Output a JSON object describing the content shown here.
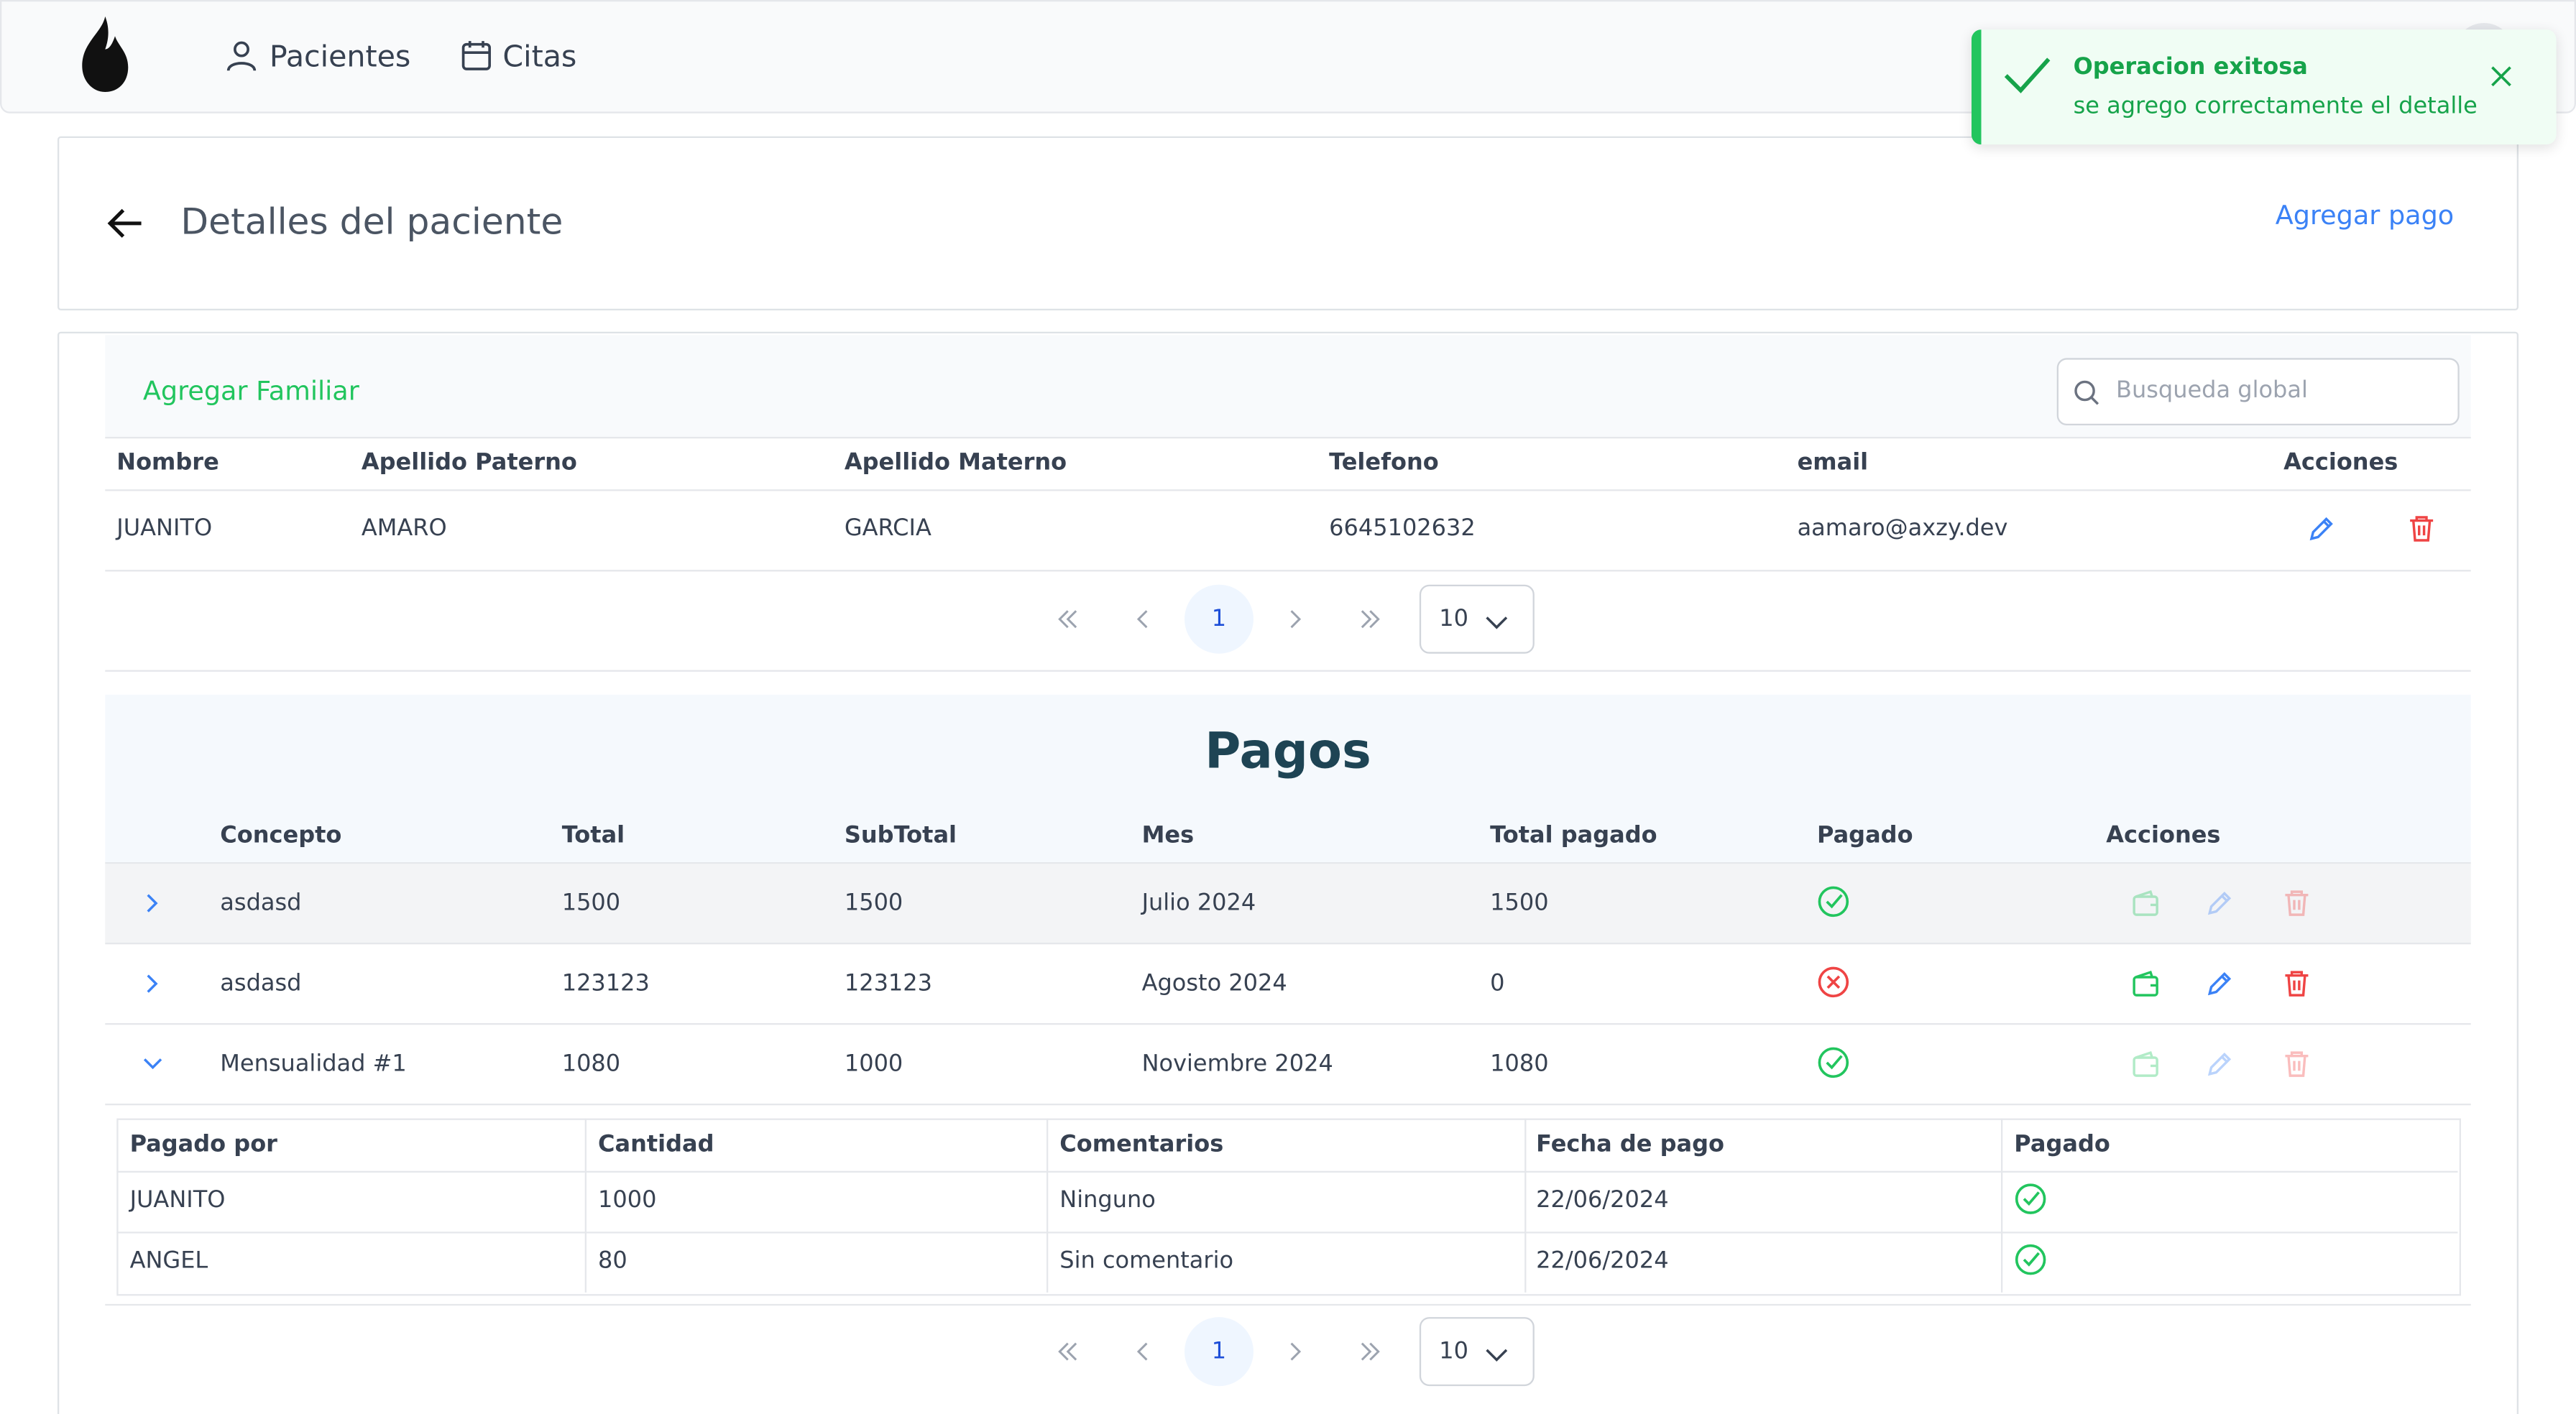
{
  "nav": {
    "items": [
      "Pacientes",
      "Citas"
    ]
  },
  "toast": {
    "title": "Operacion exitosa",
    "message": "se agrego correctamente el detalle"
  },
  "header": {
    "title": "Detalles del paciente",
    "action": "Agregar pago"
  },
  "family": {
    "add": "Agregar Familiar",
    "search_placeholder": "Busqueda global",
    "columns": [
      "Nombre",
      "Apellido Paterno",
      "Apellido Materno",
      "Telefono",
      "email",
      "Acciones"
    ],
    "rows": [
      [
        "JUANITO",
        "AMARO",
        "GARCIA",
        "6645102632",
        "aamaro@axzy.dev"
      ]
    ],
    "page": "1",
    "page_size": "10"
  },
  "payments": {
    "title": "Pagos",
    "columns": [
      "Concepto",
      "Total",
      "SubTotal",
      "Mes",
      "Total pagado",
      "Pagado",
      "Acciones"
    ],
    "rows": [
      {
        "cells": [
          "asdasd",
          "1500",
          "1500",
          "Julio 2024",
          "1500"
        ],
        "paid": true,
        "actions_enabled": false,
        "expanded": false,
        "highlighted": true
      },
      {
        "cells": [
          "asdasd",
          "123123",
          "123123",
          "Agosto 2024",
          "0"
        ],
        "paid": false,
        "actions_enabled": true,
        "expanded": false,
        "highlighted": false
      },
      {
        "cells": [
          "Mensualidad #1",
          "1080",
          "1000",
          "Noviembre 2024",
          "1080"
        ],
        "paid": true,
        "actions_enabled": false,
        "expanded": true,
        "highlighted": false
      }
    ],
    "detail": {
      "columns": [
        "Pagado por",
        "Cantidad",
        "Comentarios",
        "Fecha de pago",
        "Pagado"
      ],
      "rows": [
        {
          "cells": [
            "JUANITO",
            "1000",
            "Ninguno",
            "22/06/2024"
          ],
          "paid": true
        },
        {
          "cells": [
            "ANGEL",
            "80",
            "Sin comentario",
            "22/06/2024"
          ],
          "paid": true
        }
      ]
    },
    "page": "1",
    "page_size": "10"
  }
}
